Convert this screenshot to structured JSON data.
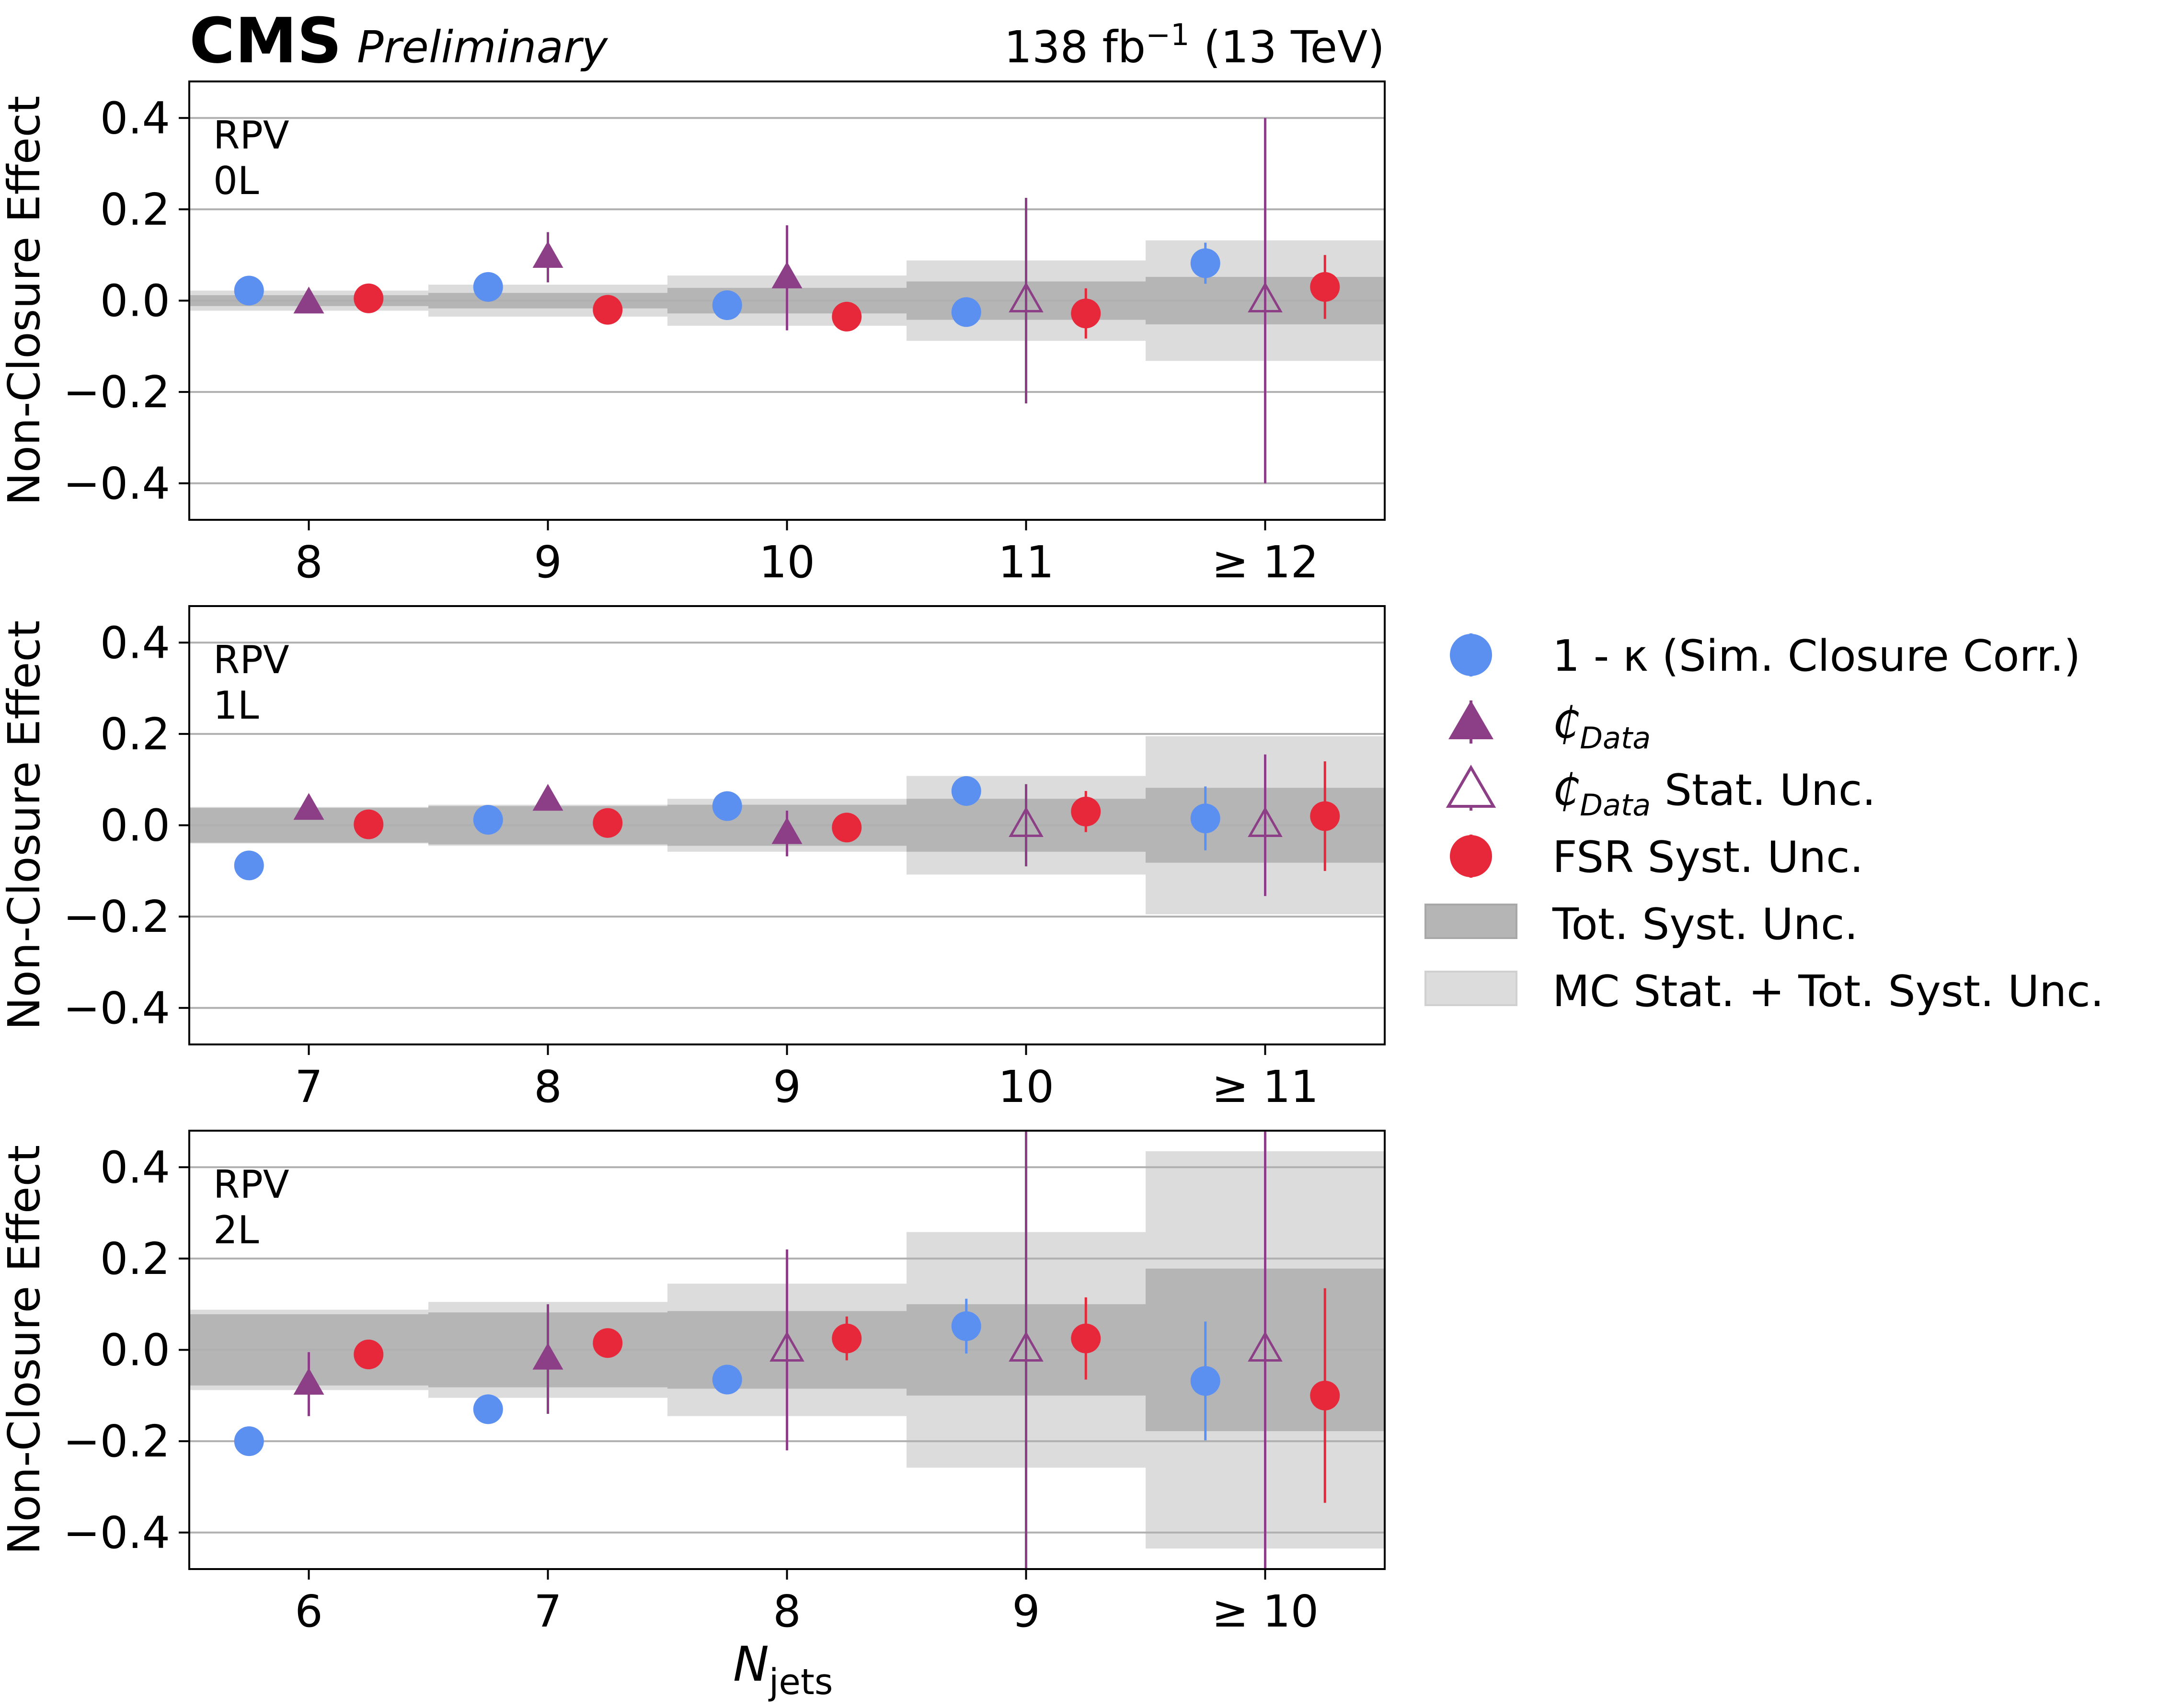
{
  "header": {
    "experiment": "CMS",
    "status": "Preliminary",
    "lumi_base": "138 fb",
    "lumi_exp": "−1",
    "lumi_energy": " (13 TeV)"
  },
  "axis": {
    "ylabel": "Non-Closure Effect",
    "xlabel_main": "N",
    "xlabel_sub": "jets",
    "yticks": [
      "0.4",
      "0.2",
      "0.0",
      "−0.2",
      "−0.4"
    ]
  },
  "legend": {
    "kappa": {
      "label": "1 - κ (Sim. Closure Corr.)",
      "color": "#5b8ff0"
    },
    "cdata": {
      "label_main": "₵",
      "label_sub": "Data",
      "color": "#8c3f87"
    },
    "cdata_stat": {
      "label_main": "₵",
      "label_sub": "Data",
      "label_rest": " Stat. Unc.",
      "color": "#8c3f87"
    },
    "fsr": {
      "label": "FSR Syst. Unc.",
      "color": "#e6283a"
    },
    "tot_syst": {
      "label": "Tot. Syst. Unc.",
      "color": "#b5b5b5"
    },
    "mc_stat": {
      "label": "MC Stat. + Tot. Syst. Unc.",
      "color": "#dcdcdc"
    }
  },
  "chart_data": [
    {
      "type": "scatter",
      "region": "RPV",
      "channel": "0L",
      "xlabel": "N_jets",
      "ylabel": "Non-Closure Effect",
      "ylim": [
        -0.48,
        0.48
      ],
      "categories": [
        "8",
        "9",
        "10",
        "11",
        "≥ 12"
      ],
      "tot_syst": [
        0.012,
        0.017,
        0.028,
        0.042,
        0.052
      ],
      "mc_stat_tot_syst": [
        0.022,
        0.035,
        0.055,
        0.088,
        0.132
      ],
      "series": [
        {
          "name": "1 - κ (Sim. Closure Corr.)",
          "values": [
            0.022,
            0.03,
            -0.01,
            -0.025,
            0.082
          ],
          "errors": [
            0.01,
            0.01,
            0.015,
            0.015,
            0.045
          ]
        },
        {
          "name": "₵Data",
          "values": [
            -0.005,
            0.095,
            0.05,
            null,
            null
          ],
          "errors": [
            0.015,
            0.055,
            0.115,
            null,
            null
          ]
        },
        {
          "name": "₵Data Stat. Unc.",
          "values": [
            null,
            null,
            null,
            0.0,
            0.0
          ],
          "errors": [
            null,
            null,
            null,
            0.225,
            0.4
          ]
        },
        {
          "name": "FSR Syst. Unc.",
          "values": [
            0.005,
            -0.02,
            -0.035,
            -0.028,
            0.03
          ],
          "errors": [
            0.01,
            0.01,
            0.01,
            0.055,
            0.07
          ]
        }
      ]
    },
    {
      "type": "scatter",
      "region": "RPV",
      "channel": "1L",
      "xlabel": "N_jets",
      "ylabel": "Non-Closure Effect",
      "ylim": [
        -0.48,
        0.48
      ],
      "categories": [
        "7",
        "8",
        "9",
        "10",
        "≥ 11"
      ],
      "tot_syst": [
        0.038,
        0.042,
        0.045,
        0.058,
        0.082
      ],
      "mc_stat_tot_syst": [
        0.04,
        0.045,
        0.058,
        0.108,
        0.195
      ],
      "series": [
        {
          "name": "1 - κ (Sim. Closure Corr.)",
          "values": [
            -0.088,
            0.012,
            0.042,
            0.075,
            0.015
          ],
          "errors": [
            0.01,
            0.01,
            0.012,
            0.015,
            0.07
          ]
        },
        {
          "name": "₵Data",
          "values": [
            0.035,
            0.055,
            -0.018,
            null,
            null
          ],
          "errors": [
            0.012,
            0.012,
            0.05,
            null,
            null
          ]
        },
        {
          "name": "₵Data Stat. Unc.",
          "values": [
            null,
            null,
            null,
            0.0,
            0.0
          ],
          "errors": [
            null,
            null,
            null,
            0.09,
            0.155
          ]
        },
        {
          "name": "FSR Syst. Unc.",
          "values": [
            0.002,
            0.005,
            -0.005,
            0.03,
            0.02
          ],
          "errors": [
            0.01,
            0.01,
            0.01,
            0.045,
            0.12
          ]
        }
      ]
    },
    {
      "type": "scatter",
      "region": "RPV",
      "channel": "2L",
      "xlabel": "N_jets",
      "ylabel": "Non-Closure Effect",
      "ylim": [
        -0.48,
        0.48
      ],
      "categories": [
        "6",
        "7",
        "8",
        "9",
        "≥ 10"
      ],
      "tot_syst": [
        0.078,
        0.082,
        0.085,
        0.1,
        0.178
      ],
      "mc_stat_tot_syst": [
        0.088,
        0.105,
        0.145,
        0.258,
        0.435
      ],
      "series": [
        {
          "name": "1 - κ (Sim. Closure Corr.)",
          "values": [
            -0.2,
            -0.13,
            -0.065,
            0.052,
            -0.068
          ],
          "errors": [
            0.012,
            0.012,
            0.012,
            0.06,
            0.13
          ]
        },
        {
          "name": "₵Data",
          "values": [
            -0.075,
            -0.02,
            null,
            null,
            null
          ],
          "errors": [
            0.07,
            0.12,
            null,
            null,
            null
          ]
        },
        {
          "name": "₵Data Stat. Unc.",
          "values": [
            null,
            null,
            0.0,
            0.0,
            0.0
          ],
          "errors": [
            null,
            null,
            0.22,
            0.5,
            0.5
          ]
        },
        {
          "name": "FSR Syst. Unc.",
          "values": [
            -0.01,
            0.015,
            0.025,
            0.025,
            -0.1
          ],
          "errors": [
            0.01,
            0.01,
            0.048,
            0.09,
            0.235
          ]
        }
      ]
    }
  ]
}
